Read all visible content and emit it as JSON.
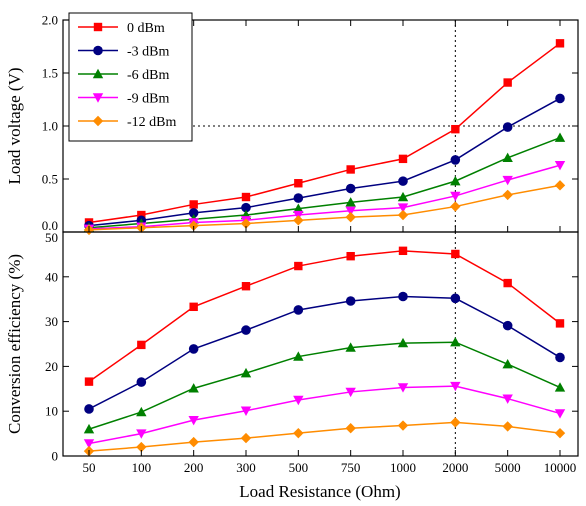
{
  "chart_data": {
    "type": "line",
    "categories": [
      "50",
      "100",
      "200",
      "300",
      "500",
      "750",
      "1000",
      "2000",
      "5000",
      "10000"
    ],
    "xlabel": "Load Resistance (Ohm)",
    "legend": {
      "placement": "top-left",
      "entries": [
        "0 dBm",
        "-3 dBm",
        "-6 dBm",
        "-9 dBm",
        "-12 dBm"
      ]
    },
    "reference_lines": {
      "vertical_at_category": "2000",
      "horizontal_top_panel_y": 1.0,
      "style": "dotted"
    },
    "panels": [
      {
        "id": "top",
        "ylabel": "Load voltage (V)",
        "ylim": [
          0,
          2.0
        ],
        "yticks": [
          {
            "value": 0.0,
            "label": "0.0"
          },
          {
            "value": 0.5,
            "label": "0.5"
          },
          {
            "value": 1.0,
            "label": "1.0"
          },
          {
            "value": 1.5,
            "label": "1.5"
          },
          {
            "value": 2.0,
            "label": "2.0"
          }
        ],
        "series": [
          {
            "name": "0 dBm",
            "color": "#ff0000",
            "marker": "square",
            "values": [
              0.09,
              0.16,
              0.26,
              0.33,
              0.46,
              0.59,
              0.69,
              0.97,
              1.41,
              1.78
            ]
          },
          {
            "name": "-3 dBm",
            "color": "#000080",
            "marker": "circle",
            "values": [
              0.06,
              0.11,
              0.18,
              0.23,
              0.32,
              0.41,
              0.48,
              0.68,
              0.99,
              1.26
            ]
          },
          {
            "name": "-6 dBm",
            "color": "#008000",
            "marker": "triangle-up",
            "values": [
              0.04,
              0.08,
              0.12,
              0.16,
              0.22,
              0.28,
              0.33,
              0.48,
              0.7,
              0.89
            ]
          },
          {
            "name": "-9 dBm",
            "color": "#ff00ff",
            "marker": "triangle-down",
            "values": [
              0.03,
              0.05,
              0.09,
              0.11,
              0.16,
              0.2,
              0.23,
              0.34,
              0.49,
              0.63
            ]
          },
          {
            "name": "-12 dBm",
            "color": "#ff8c00",
            "marker": "diamond",
            "values": [
              0.02,
              0.04,
              0.06,
              0.08,
              0.11,
              0.14,
              0.16,
              0.24,
              0.35,
              0.44
            ]
          }
        ]
      },
      {
        "id": "bottom",
        "ylabel": "Conversion efficiency (%)",
        "ylim": [
          0,
          50
        ],
        "yticks": [
          {
            "value": 0,
            "label": "0"
          },
          {
            "value": 10,
            "label": "10"
          },
          {
            "value": 20,
            "label": "20"
          },
          {
            "value": 30,
            "label": "30"
          },
          {
            "value": 40,
            "label": "40"
          },
          {
            "value": 50,
            "label": "50"
          }
        ],
        "series": [
          {
            "name": "0 dBm",
            "color": "#ff0000",
            "marker": "square",
            "values": [
              16.6,
              24.8,
              33.3,
              37.9,
              42.4,
              44.6,
              45.8,
              45.1,
              38.6,
              29.6
            ]
          },
          {
            "name": "-3 dBm",
            "color": "#000080",
            "marker": "circle",
            "values": [
              10.5,
              16.5,
              23.9,
              28.1,
              32.6,
              34.6,
              35.6,
              35.2,
              29.1,
              22.0
            ]
          },
          {
            "name": "-6 dBm",
            "color": "#008000",
            "marker": "triangle-up",
            "values": [
              6.0,
              9.8,
              15.1,
              18.5,
              22.2,
              24.2,
              25.2,
              25.4,
              20.5,
              15.3
            ]
          },
          {
            "name": "-9 dBm",
            "color": "#ff00ff",
            "marker": "triangle-down",
            "values": [
              2.8,
              5.0,
              8.0,
              10.1,
              12.5,
              14.3,
              15.3,
              15.6,
              12.8,
              9.5
            ]
          },
          {
            "name": "-12 dBm",
            "color": "#ff8c00",
            "marker": "diamond",
            "values": [
              1.1,
              2.0,
              3.1,
              4.0,
              5.1,
              6.2,
              6.8,
              7.5,
              6.6,
              5.1
            ]
          }
        ]
      }
    ]
  }
}
